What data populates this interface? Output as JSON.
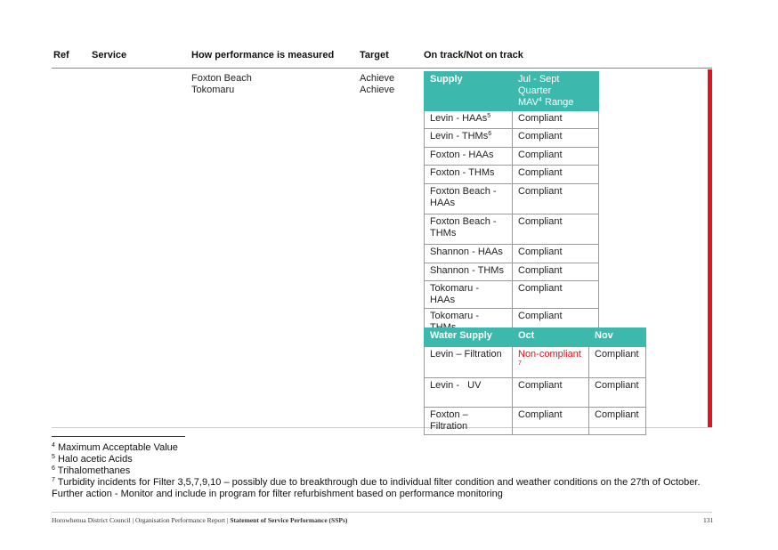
{
  "header": {
    "columns": [
      "Ref",
      "Service",
      "How performance is measured",
      "Target",
      "On track/Not on track"
    ]
  },
  "rows": [
    {
      "measure": "Foxton Beach",
      "target": "Achieve"
    },
    {
      "measure": "Tokomaru",
      "target": "Achieve"
    }
  ],
  "supply_table": {
    "header": [
      "Supply",
      {
        "line1": "Jul - Sept Quarter",
        "line2": "MAV",
        "sup": "4",
        "tail": " Range"
      }
    ],
    "rows": [
      [
        {
          "text": "Levin - HAAs",
          "sup": "5"
        },
        "Compliant"
      ],
      [
        {
          "text": "Levin - THMs",
          "sup": "6"
        },
        "Compliant"
      ],
      [
        "Foxton - HAAs",
        "Compliant"
      ],
      [
        "Foxton - THMs",
        "Compliant"
      ],
      [
        "Foxton Beach - HAAs",
        "Compliant"
      ],
      [
        "Foxton Beach - THMs",
        "Compliant"
      ],
      [
        "Shannon - HAAs",
        "Compliant"
      ],
      [
        "Shannon - THMs",
        "Compliant"
      ],
      [
        "Tokomaru - HAAs",
        "Compliant"
      ],
      [
        "Tokomaru - THMs",
        "Compliant"
      ]
    ]
  },
  "water_table": {
    "header": [
      "Water Supply",
      "Oct",
      "Nov"
    ],
    "rows": [
      [
        "Levin – Filtration",
        {
          "text": "Non-compliant ",
          "sup": "7"
        },
        "Compliant"
      ],
      [
        "Levin -   UV",
        "Compliant",
        "Compliant"
      ],
      [
        "Foxton – Filtration",
        "Compliant",
        "Compliant"
      ]
    ]
  },
  "footnotes": [
    {
      "mark": "4",
      "text": "Maximum Acceptable Value"
    },
    {
      "mark": "5",
      "text": "Halo acetic Acids"
    },
    {
      "mark": "6",
      "text": "Trihalomethanes"
    },
    {
      "mark": "7",
      "text": "Turbidity incidents for Filter 3,5,7,9,10 – possibly due to breakthrough due to individual filter condition and weather conditions on the 27th of October. Further action - Monitor and include in program for filter refurbishment based on performance monitoring"
    }
  ],
  "footer": {
    "left": "Horowhenua District Council | Organisation Performance Report | ",
    "bold": "Statement of Service Performance (SSPs)",
    "page": "131"
  }
}
